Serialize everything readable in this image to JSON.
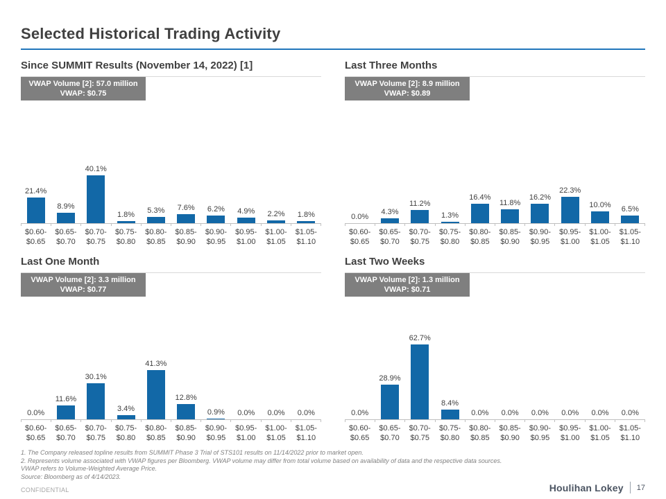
{
  "page": {
    "title": "Selected Historical Trading Activity",
    "confidential": "CONFIDENTIAL",
    "footer_brand": "Houlihan Lokey",
    "page_number": "17"
  },
  "colors": {
    "bar": "#1268A7",
    "accent_rule": "#2176BB",
    "vwap_box_bg": "#7F7F7F",
    "axis": "#BFBFBF"
  },
  "footnotes": [
    "1. The Company released topline results from SUMMIT Phase 3 Trial of STS101 results on 11/14/2022 prior to market open.",
    "2. Represents volume associated with VWAP figures per Bloomberg. VWAP volume may differ from total volume based on availability of data and the respective data sources.",
    "VWAP refers to Volume-Weighted Average Price.",
    "Source: Bloomberg as of 4/14/2023."
  ],
  "chart_data": [
    {
      "type": "bar",
      "title": "Since SUMMIT Results (November 14, 2022) [1]",
      "vwap_volume_label": "VWAP Volume [2]: 57.0 million",
      "vwap_price_label": "VWAP: $0.75",
      "categories": [
        "$0.60-$0.65",
        "$0.65-$0.70",
        "$0.70-$0.75",
        "$0.75-$0.80",
        "$0.80-$0.85",
        "$0.85-$0.90",
        "$0.90-$0.95",
        "$0.95-$1.00",
        "$1.00-$1.05",
        "$1.05-$1.10"
      ],
      "values": [
        21.4,
        8.9,
        40.1,
        1.8,
        5.3,
        7.6,
        6.2,
        4.9,
        2.2,
        1.8
      ],
      "value_suffix": "%",
      "ylim": [
        0,
        100
      ],
      "grid": false,
      "legend": false
    },
    {
      "type": "bar",
      "title": "Last Three Months",
      "vwap_volume_label": "VWAP Volume [2]: 8.9 million",
      "vwap_price_label": "VWAP: $0.89",
      "categories": [
        "$0.60-$0.65",
        "$0.65-$0.70",
        "$0.70-$0.75",
        "$0.75-$0.80",
        "$0.80-$0.85",
        "$0.85-$0.90",
        "$0.90-$0.95",
        "$0.95-$1.00",
        "$1.00-$1.05",
        "$1.05-$1.10"
      ],
      "values": [
        0.0,
        4.3,
        11.2,
        1.3,
        16.4,
        11.8,
        16.2,
        22.3,
        10.0,
        6.5
      ],
      "value_suffix": "%",
      "ylim": [
        0,
        100
      ],
      "grid": false,
      "legend": false
    },
    {
      "type": "bar",
      "title": "Last One Month",
      "vwap_volume_label": "VWAP Volume [2]: 3.3 million",
      "vwap_price_label": "VWAP: $0.77",
      "categories": [
        "$0.60-$0.65",
        "$0.65-$0.70",
        "$0.70-$0.75",
        "$0.75-$0.80",
        "$0.80-$0.85",
        "$0.85-$0.90",
        "$0.90-$0.95",
        "$0.95-$1.00",
        "$1.00-$1.05",
        "$1.05-$1.10"
      ],
      "values": [
        0.0,
        11.6,
        30.1,
        3.4,
        41.3,
        12.8,
        0.9,
        0.0,
        0.0,
        0.0
      ],
      "value_suffix": "%",
      "ylim": [
        0,
        100
      ],
      "grid": false,
      "legend": false
    },
    {
      "type": "bar",
      "title": "Last Two Weeks",
      "vwap_volume_label": "VWAP Volume [2]: 1.3 million",
      "vwap_price_label": "VWAP: $0.71",
      "categories": [
        "$0.60-$0.65",
        "$0.65-$0.70",
        "$0.70-$0.75",
        "$0.75-$0.80",
        "$0.80-$0.85",
        "$0.85-$0.90",
        "$0.90-$0.95",
        "$0.95-$1.00",
        "$1.00-$1.05",
        "$1.05-$1.10"
      ],
      "values": [
        0.0,
        28.9,
        62.7,
        8.4,
        0.0,
        0.0,
        0.0,
        0.0,
        0.0,
        0.0
      ],
      "value_suffix": "%",
      "ylim": [
        0,
        100
      ],
      "grid": false,
      "legend": false
    }
  ]
}
